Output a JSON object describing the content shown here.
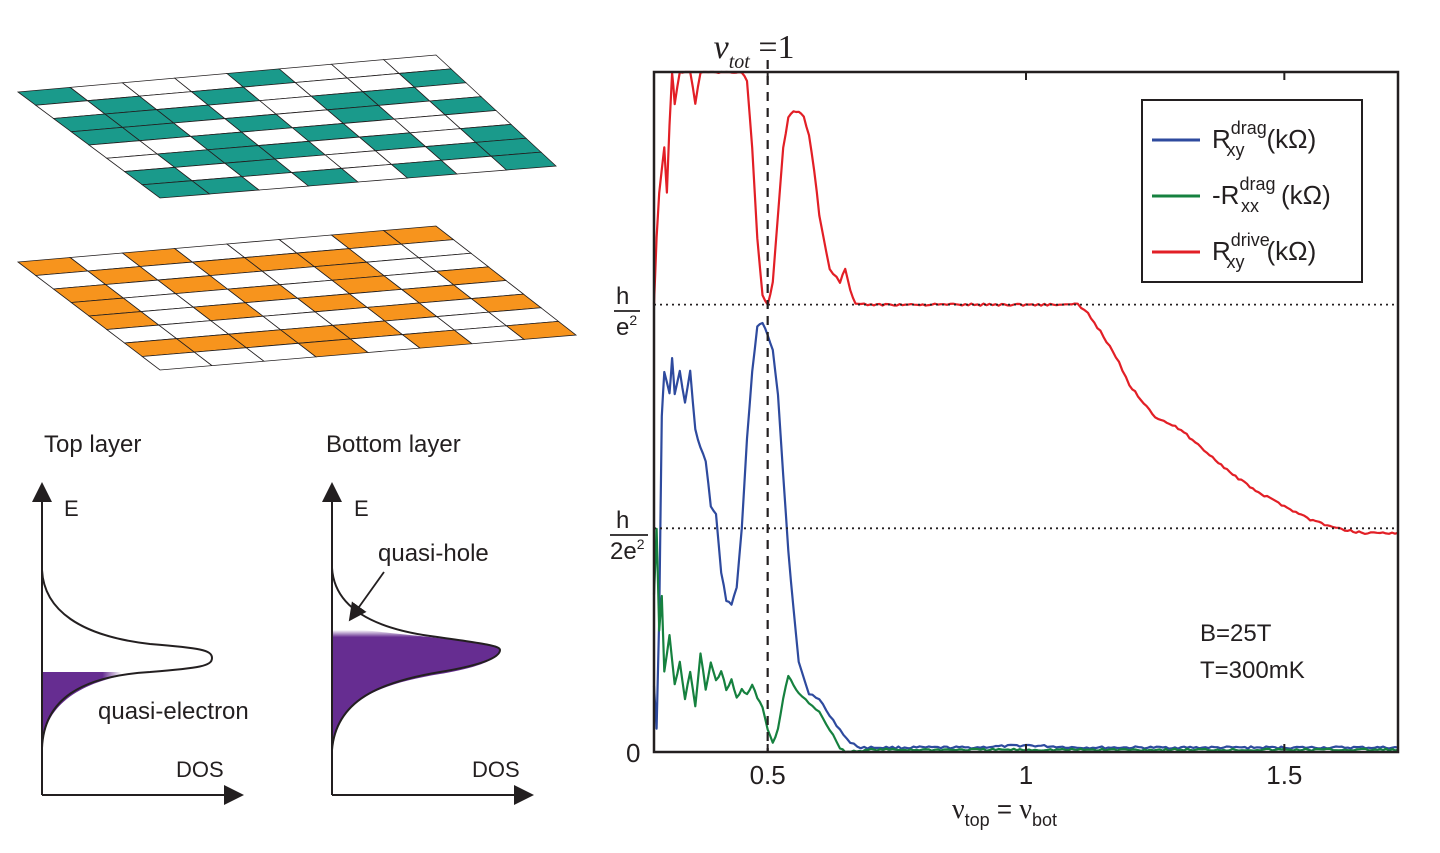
{
  "illustration": {
    "top_layer_label": "Top layer",
    "bottom_layer_label": "Bottom layer",
    "energy_axis_label": "E",
    "dos_axis_label": "DOS",
    "quasi_electron_label": "quasi-electron",
    "quasi_hole_label": "quasi-hole",
    "top_lattice_color": "#1a9a8b",
    "bottom_lattice_color": "#f7941d",
    "dos_fill_color": "#662d91"
  },
  "chart_data": {
    "type": "line",
    "xlabel": {
      "nu": "ν",
      "sub1": "top",
      "eq": " = ",
      "sub2": "bot"
    },
    "xlim": [
      0.28,
      1.72
    ],
    "ylim": [
      0,
      1.52
    ],
    "xticks": [
      0.5,
      1,
      1.5
    ],
    "xtick_labels": [
      "0.5",
      "1",
      "1.5"
    ],
    "yticks": [
      {
        "value": 0,
        "label": "0"
      },
      {
        "value": 0.5,
        "num": "h",
        "den": "2e",
        "sup": "2"
      },
      {
        "value": 1.0,
        "num": "h",
        "den": "e",
        "sup": "2"
      }
    ],
    "annotation": {
      "nu": "ν",
      "sub": "tot",
      "rest": " =1",
      "x": 0.5
    },
    "conditions": [
      "B=25T",
      "T=300mK"
    ],
    "legend_position": "top-right",
    "series": [
      {
        "name_main": "R",
        "name_sub": "xy",
        "name_sup": "drag",
        "name_unit": "(kΩ)",
        "color": "#2e4a9e",
        "x": [
          0.28,
          0.285,
          0.29,
          0.295,
          0.3,
          0.31,
          0.315,
          0.32,
          0.33,
          0.34,
          0.35,
          0.36,
          0.37,
          0.38,
          0.39,
          0.4,
          0.41,
          0.42,
          0.43,
          0.44,
          0.45,
          0.46,
          0.47,
          0.48,
          0.49,
          0.5,
          0.51,
          0.52,
          0.53,
          0.54,
          0.55,
          0.56,
          0.58,
          0.6,
          0.62,
          0.64,
          0.66,
          0.68,
          0.7,
          0.8,
          0.9,
          1.0,
          1.1,
          1.2,
          1.3,
          1.4,
          1.5,
          1.6,
          1.72
        ],
        "y": [
          0.15,
          0.05,
          0.3,
          0.75,
          0.85,
          0.8,
          0.88,
          0.8,
          0.85,
          0.78,
          0.85,
          0.72,
          0.68,
          0.65,
          0.55,
          0.53,
          0.4,
          0.34,
          0.33,
          0.37,
          0.5,
          0.7,
          0.85,
          0.95,
          0.96,
          0.93,
          0.9,
          0.8,
          0.62,
          0.45,
          0.32,
          0.2,
          0.13,
          0.12,
          0.08,
          0.05,
          0.02,
          0.01,
          0.01,
          0.01,
          0.01,
          0.015,
          0.01,
          0.01,
          0.01,
          0.01,
          0.01,
          0.01,
          0.01
        ]
      },
      {
        "name_main": "-R",
        "name_sub": "xx",
        "name_sup": "drag",
        "name_unit": "(kΩ)",
        "color": "#16813f",
        "x": [
          0.28,
          0.285,
          0.29,
          0.295,
          0.3,
          0.31,
          0.32,
          0.33,
          0.34,
          0.35,
          0.36,
          0.37,
          0.38,
          0.39,
          0.4,
          0.41,
          0.42,
          0.43,
          0.44,
          0.45,
          0.46,
          0.47,
          0.48,
          0.49,
          0.5,
          0.51,
          0.52,
          0.53,
          0.54,
          0.55,
          0.56,
          0.58,
          0.6,
          0.62,
          0.64,
          0.65,
          0.7,
          0.8,
          0.9,
          1.0,
          1.1,
          1.2,
          1.3,
          1.4,
          1.5,
          1.6,
          1.72
        ],
        "y": [
          0.35,
          0.5,
          0.27,
          0.35,
          0.18,
          0.26,
          0.15,
          0.2,
          0.12,
          0.18,
          0.1,
          0.22,
          0.14,
          0.2,
          0.16,
          0.18,
          0.14,
          0.16,
          0.12,
          0.14,
          0.13,
          0.15,
          0.12,
          0.1,
          0.05,
          0.02,
          0.05,
          0.12,
          0.17,
          0.15,
          0.13,
          0.11,
          0.09,
          0.05,
          0.01,
          0.0,
          0.005,
          0.005,
          0.005,
          0.005,
          0.005,
          0.005,
          0.005,
          0.005,
          0.005,
          0.005,
          0.005
        ]
      },
      {
        "name_main": "R",
        "name_sub": "xy",
        "name_sup": "drive",
        "name_unit": "(kΩ)",
        "color": "#e21f26",
        "x": [
          0.28,
          0.285,
          0.29,
          0.3,
          0.305,
          0.31,
          0.315,
          0.32,
          0.33,
          0.34,
          0.35,
          0.36,
          0.37,
          0.38,
          0.39,
          0.4,
          0.41,
          0.42,
          0.43,
          0.44,
          0.45,
          0.46,
          0.47,
          0.48,
          0.49,
          0.5,
          0.51,
          0.52,
          0.53,
          0.54,
          0.55,
          0.56,
          0.57,
          0.58,
          0.59,
          0.6,
          0.62,
          0.64,
          0.65,
          0.66,
          0.67,
          0.68,
          0.7,
          0.75,
          0.8,
          0.9,
          1.0,
          1.1,
          1.12,
          1.15,
          1.18,
          1.2,
          1.25,
          1.3,
          1.35,
          1.4,
          1.45,
          1.5,
          1.55,
          1.6,
          1.65,
          1.72
        ],
        "y": [
          1.0,
          1.15,
          1.25,
          1.35,
          1.25,
          1.4,
          1.52,
          1.45,
          1.52,
          1.52,
          1.52,
          1.45,
          1.52,
          1.52,
          1.52,
          1.52,
          1.52,
          1.52,
          1.52,
          1.52,
          1.52,
          1.5,
          1.35,
          1.15,
          1.02,
          1.0,
          1.05,
          1.2,
          1.35,
          1.42,
          1.43,
          1.43,
          1.42,
          1.38,
          1.3,
          1.2,
          1.08,
          1.05,
          1.08,
          1.03,
          1.0,
          1.0,
          1.0,
          1.0,
          1.0,
          1.0,
          1.0,
          1.0,
          0.98,
          0.93,
          0.87,
          0.82,
          0.75,
          0.72,
          0.67,
          0.62,
          0.58,
          0.55,
          0.52,
          0.5,
          0.49,
          0.49
        ]
      }
    ]
  }
}
